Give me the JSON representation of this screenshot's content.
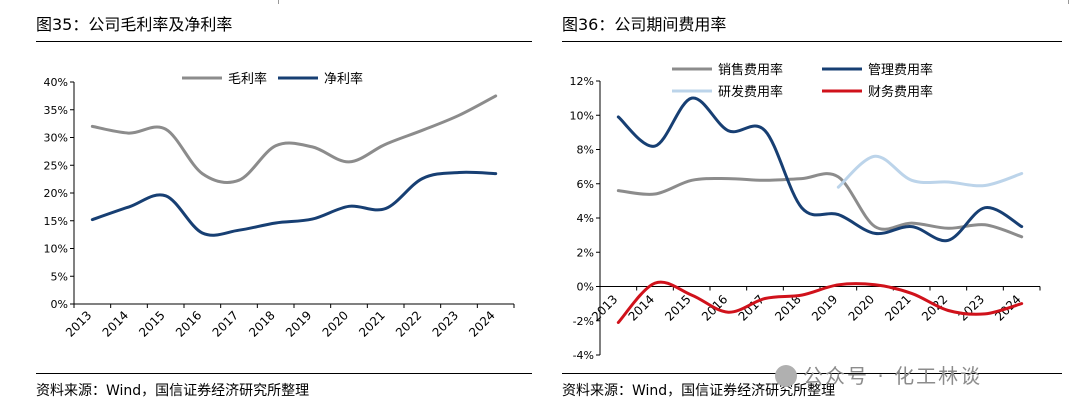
{
  "chart_data": [
    {
      "type": "line",
      "title": "图35：公司毛利率及净利率",
      "categories": [
        "2013",
        "2014",
        "2015",
        "2016",
        "2017",
        "2018",
        "2019",
        "2020",
        "2021",
        "2022",
        "2023",
        "2024"
      ],
      "yticks": [
        "0%",
        "5%",
        "10%",
        "15%",
        "20%",
        "25%",
        "30%",
        "35%",
        "40%"
      ],
      "ylim": [
        0,
        40
      ],
      "legend_position": "top-center",
      "series": [
        {
          "name": "毛利率",
          "color": "#8c8c8c",
          "values": [
            32.0,
            30.8,
            31.5,
            23.5,
            22.3,
            28.5,
            28.3,
            25.6,
            28.8,
            31.3,
            34.0,
            37.5
          ]
        },
        {
          "name": "净利率",
          "color": "#173f73",
          "values": [
            15.2,
            17.5,
            19.5,
            12.8,
            13.3,
            14.6,
            15.3,
            17.6,
            17.2,
            22.6,
            23.7,
            23.5
          ]
        }
      ],
      "source": "资料来源：Wind，国信证券经济研究所整理"
    },
    {
      "type": "line",
      "title": "图36：公司期间费用率",
      "categories": [
        "2013",
        "2014",
        "2015",
        "2016",
        "2017",
        "2018",
        "2019",
        "2020",
        "2021",
        "2022",
        "2023",
        "2024"
      ],
      "yticks": [
        "-4%",
        "-2%",
        "0%",
        "2%",
        "4%",
        "6%",
        "8%",
        "10%",
        "12%"
      ],
      "ylim": [
        -4,
        12
      ],
      "legend_position": "top-center",
      "series": [
        {
          "name": "销售费用率",
          "color": "#8c8c8c",
          "values": [
            5.6,
            5.4,
            6.2,
            6.3,
            6.2,
            6.3,
            6.4,
            3.5,
            3.7,
            3.4,
            3.6,
            2.9
          ]
        },
        {
          "name": "管理费用率",
          "color": "#173f73",
          "values": [
            9.9,
            8.2,
            11.0,
            9.1,
            9.1,
            4.6,
            4.2,
            3.1,
            3.5,
            2.7,
            4.6,
            3.5
          ]
        },
        {
          "name": "研发费用率",
          "color": "#bcd4ea",
          "values": [
            null,
            null,
            null,
            null,
            null,
            null,
            5.8,
            7.6,
            6.2,
            6.1,
            5.9,
            6.6
          ]
        },
        {
          "name": "财务费用率",
          "color": "#d0121b",
          "values": [
            -2.1,
            0.2,
            -0.5,
            -1.5,
            -0.7,
            -0.5,
            0.1,
            0.1,
            -0.4,
            -1.4,
            -1.6,
            -1.0
          ]
        }
      ],
      "source": "资料来源：Wind，国信证券经济研究所整理"
    }
  ],
  "watermark": "公众号 · 化工林谈"
}
